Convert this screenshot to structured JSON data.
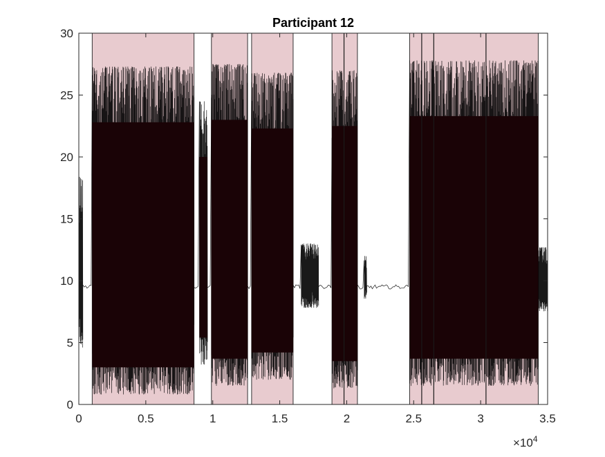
{
  "chart_data": {
    "type": "line",
    "title": "Participant 12",
    "xlabel": "",
    "ylabel": "",
    "xlim": [
      0,
      35000
    ],
    "ylim": [
      0,
      30
    ],
    "x_exponent_label": "×10",
    "x_exponent_power": "4",
    "xticks": [
      {
        "value": 0,
        "label": "0"
      },
      {
        "value": 5000,
        "label": "0.5"
      },
      {
        "value": 10000,
        "label": "1"
      },
      {
        "value": 15000,
        "label": "1.5"
      },
      {
        "value": 20000,
        "label": "2"
      },
      {
        "value": 25000,
        "label": "2.5"
      },
      {
        "value": 30000,
        "label": "3"
      },
      {
        "value": 35000,
        "label": "3.5"
      }
    ],
    "yticks": [
      {
        "value": 0,
        "label": "0"
      },
      {
        "value": 5,
        "label": "5"
      },
      {
        "value": 10,
        "label": "10"
      },
      {
        "value": 15,
        "label": "15"
      },
      {
        "value": 20,
        "label": "20"
      },
      {
        "value": 25,
        "label": "25"
      },
      {
        "value": 30,
        "label": "30"
      }
    ],
    "grid": false,
    "baseline": 9.5,
    "line_color": "#000000",
    "highlight_color": "#e8cbcf",
    "highlight_regions": [
      {
        "start": 1000,
        "end": 8600
      },
      {
        "start": 9900,
        "end": 12600
      },
      {
        "start": 12900,
        "end": 16000
      },
      {
        "start": 18900,
        "end": 20800
      },
      {
        "start": 24700,
        "end": 34300
      }
    ],
    "region_boundaries": [
      19800,
      25600,
      26500,
      30400
    ],
    "signal_segments": [
      {
        "start": 0,
        "end": 300,
        "low": 4.5,
        "high": 18.5
      },
      {
        "start": 1000,
        "end": 8600,
        "low": 0.8,
        "high": 27.3
      },
      {
        "start": 9000,
        "end": 9600,
        "low": 3.2,
        "high": 24.5
      },
      {
        "start": 9900,
        "end": 12600,
        "low": 1.5,
        "high": 27.5
      },
      {
        "start": 12900,
        "end": 16000,
        "low": 2.0,
        "high": 26.8
      },
      {
        "start": 16600,
        "end": 17900,
        "low": 7.8,
        "high": 13.0
      },
      {
        "start": 18900,
        "end": 20800,
        "low": 1.3,
        "high": 27.0
      },
      {
        "start": 21300,
        "end": 21500,
        "low": 8.5,
        "high": 12.0
      },
      {
        "start": 24700,
        "end": 34300,
        "low": 1.5,
        "high": 27.8
      },
      {
        "start": 34300,
        "end": 35000,
        "low": 7.5,
        "high": 12.7
      }
    ]
  }
}
